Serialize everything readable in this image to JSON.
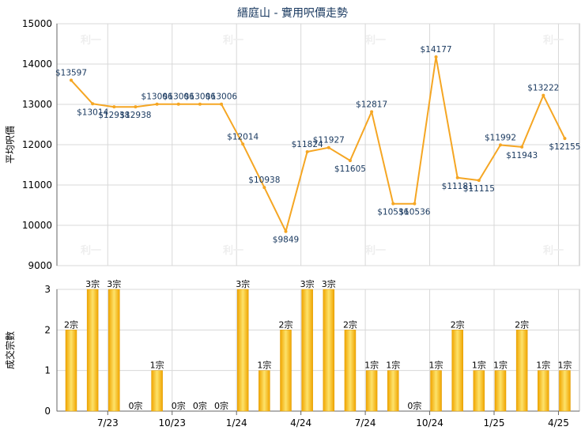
{
  "title": "縉庭山 - 實用呎價走勢",
  "watermark": "利一",
  "colors": {
    "line": "#f5a623",
    "bar_light": "#fde26a",
    "bar_dark": "#f0a500",
    "grid": "#d8d8d8",
    "axis": "#666666",
    "text": "#000000",
    "label": "#17375e"
  },
  "chart_data": [
    {
      "type": "line",
      "title": "縉庭山 - 實用呎價走勢",
      "ylabel": "平均呎價",
      "ylim": [
        9000,
        15000
      ],
      "yticks": [
        9000,
        10000,
        11000,
        12000,
        13000,
        14000,
        15000
      ],
      "grid": true,
      "points": [
        {
          "x": 0,
          "y": 13597,
          "label": "$13597"
        },
        {
          "x": 1,
          "y": 13014,
          "label": "$13014"
        },
        {
          "x": 2,
          "y": 12938,
          "label": "$12938"
        },
        {
          "x": 3,
          "y": 12938,
          "label": "$12938"
        },
        {
          "x": 4,
          "y": 13006,
          "label": "$13006"
        },
        {
          "x": 5,
          "y": 13006,
          "label": "$13006"
        },
        {
          "x": 6,
          "y": 13006,
          "label": "$13006"
        },
        {
          "x": 7,
          "y": 13006,
          "label": "$13006"
        },
        {
          "x": 8,
          "y": 12014,
          "label": "$12014"
        },
        {
          "x": 9,
          "y": 10938,
          "label": "$10938"
        },
        {
          "x": 10,
          "y": 9849,
          "label": "$9849"
        },
        {
          "x": 11,
          "y": 11824,
          "label": "$11824"
        },
        {
          "x": 12,
          "y": 11927,
          "label": "$11927"
        },
        {
          "x": 13,
          "y": 11605,
          "label": "$11605"
        },
        {
          "x": 14,
          "y": 12817,
          "label": "$12817"
        },
        {
          "x": 15,
          "y": 10536,
          "label": "$10536"
        },
        {
          "x": 16,
          "y": 10536,
          "label": "$10536"
        },
        {
          "x": 17,
          "y": 14177,
          "label": "$14177"
        },
        {
          "x": 18,
          "y": 11181,
          "label": "$11181"
        },
        {
          "x": 19,
          "y": 11115,
          "label": "$11115"
        },
        {
          "x": 20,
          "y": 11992,
          "label": "$11992"
        },
        {
          "x": 21,
          "y": 11943,
          "label": "$11943"
        },
        {
          "x": 22,
          "y": 13222,
          "label": "$13222"
        },
        {
          "x": 23,
          "y": 12155,
          "label": "$12155"
        }
      ]
    },
    {
      "type": "bar",
      "ylabel": "成交宗數",
      "ylim": [
        0,
        3
      ],
      "yticks": [
        0,
        1,
        2,
        3
      ],
      "grid": true,
      "x_tick_labels": [
        "7/23",
        "10/23",
        "1/24",
        "4/24",
        "7/24",
        "10/24",
        "1/25",
        "4/25"
      ],
      "values": [
        2,
        3,
        3,
        0,
        1,
        0,
        0,
        0,
        3,
        1,
        2,
        3,
        3,
        2,
        1,
        1,
        0,
        1,
        2,
        1,
        1,
        2,
        1,
        1
      ],
      "bar_labels": [
        "2宗",
        "3宗",
        "3宗",
        "0宗",
        "1宗",
        "0宗",
        "0宗",
        "0宗",
        "3宗",
        "1宗",
        "2宗",
        "3宗",
        "3宗",
        "2宗",
        "1宗",
        "1宗",
        "0宗",
        "1宗",
        "2宗",
        "1宗",
        "1宗",
        "2宗",
        "1宗",
        "1宗"
      ]
    }
  ]
}
